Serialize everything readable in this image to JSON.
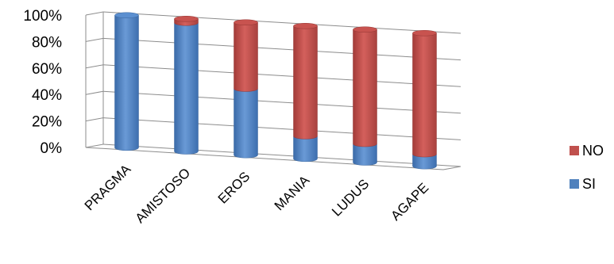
{
  "chart_data": {
    "type": "bar",
    "stacked": true,
    "percent": true,
    "three_d": true,
    "categories": [
      "PRAGMA",
      "AMISTOSO",
      "EROS",
      "MANIA",
      "LUDUS",
      "AGAPE"
    ],
    "series": [
      {
        "name": "SI",
        "values": [
          100,
          97,
          50,
          17,
          14,
          9
        ],
        "color": "#4f81bd"
      },
      {
        "name": "NO",
        "values": [
          0,
          3,
          50,
          83,
          86,
          91
        ],
        "color": "#c0504d"
      }
    ],
    "yticks": [
      "0%",
      "20%",
      "40%",
      "60%",
      "80%",
      "100%"
    ],
    "ylim": [
      0,
      100
    ],
    "grid": true,
    "legend_position": "right"
  }
}
